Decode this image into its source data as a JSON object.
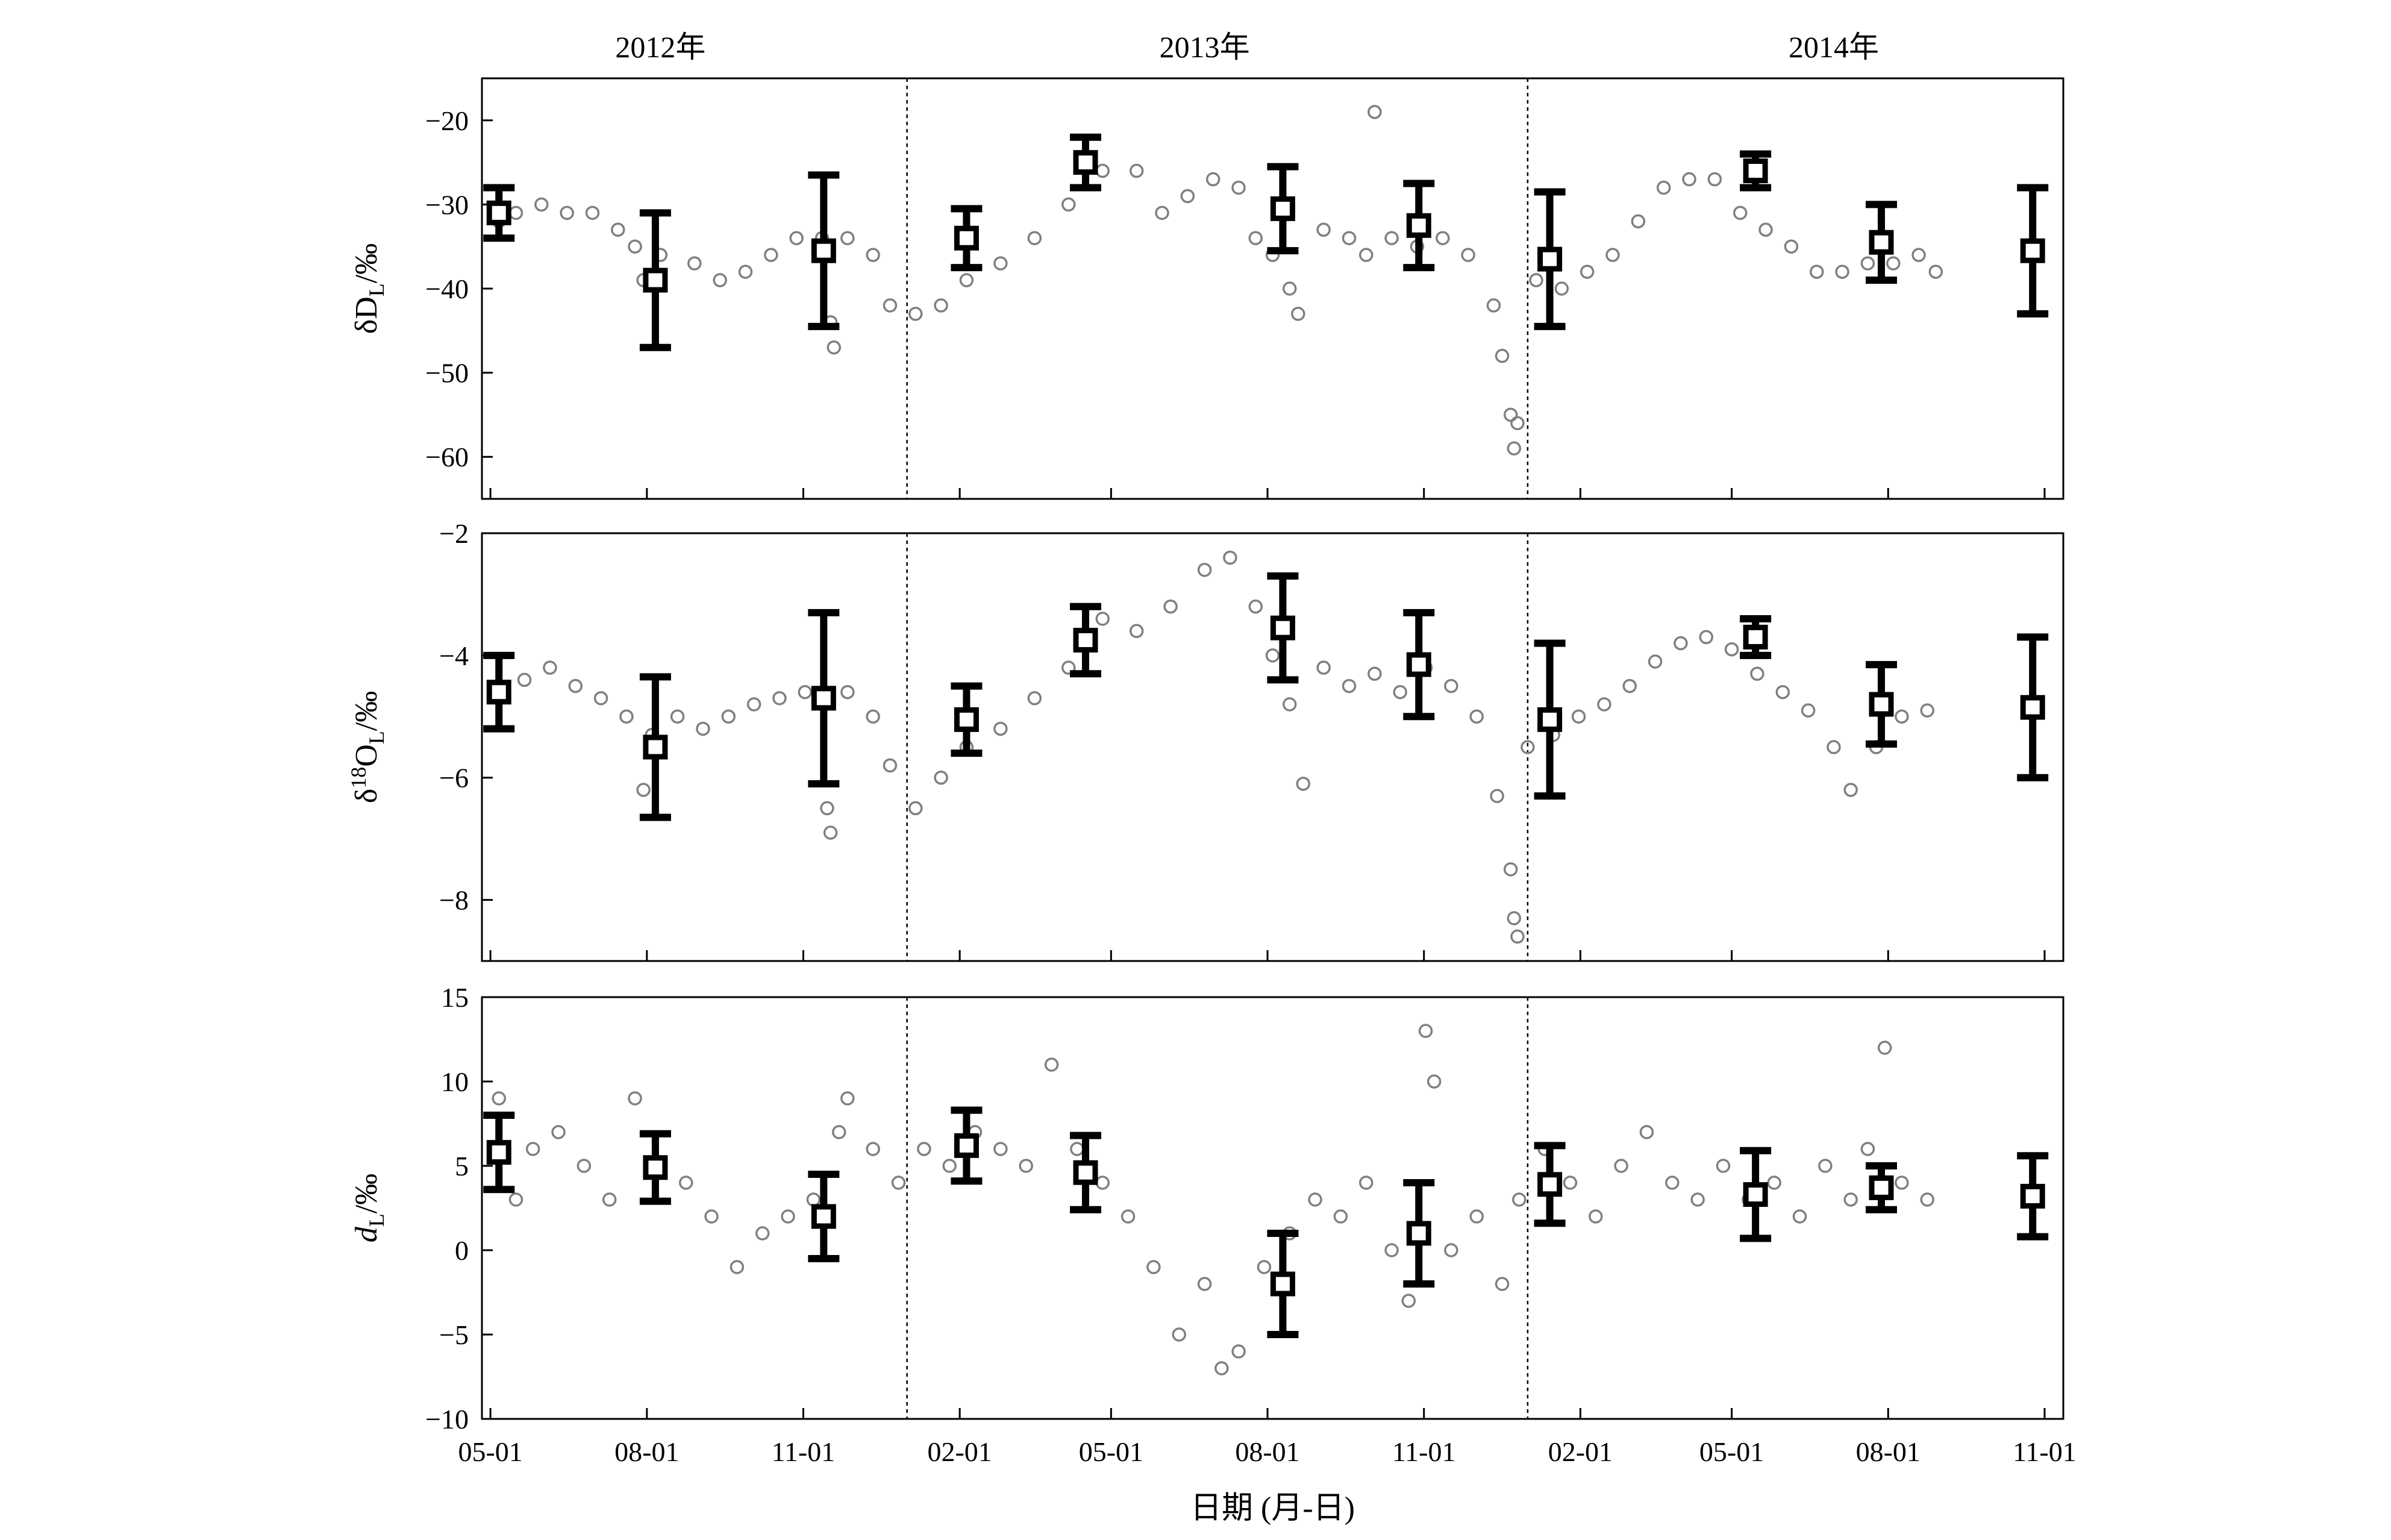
{
  "chart_data": [
    {
      "id": "dD",
      "type": "scatter",
      "ylabel": "δD_L/‰",
      "ylim": [
        -65,
        -15
      ],
      "yticks": [
        -20,
        -30,
        -40,
        -50,
        -60
      ],
      "yticklabels": [
        "−20",
        "−30",
        "−40",
        "−50",
        "−60"
      ],
      "marker_color": "#808080",
      "series": [
        {
          "points": [
            {
              "x": 5,
              "y": -32
            },
            {
              "x": 15,
              "y": -31
            },
            {
              "x": 30,
              "y": -30
            },
            {
              "x": 45,
              "y": -31
            },
            {
              "x": 60,
              "y": -31
            },
            {
              "x": 75,
              "y": -33
            },
            {
              "x": 85,
              "y": -35
            },
            {
              "x": 90,
              "y": -39
            },
            {
              "x": 100,
              "y": -36
            },
            {
              "x": 120,
              "y": -37
            },
            {
              "x": 135,
              "y": -39
            },
            {
              "x": 150,
              "y": -38
            },
            {
              "x": 165,
              "y": -36
            },
            {
              "x": 180,
              "y": -34
            },
            {
              "x": 195,
              "y": -34
            },
            {
              "x": 200,
              "y": -44
            },
            {
              "x": 202,
              "y": -47
            },
            {
              "x": 210,
              "y": -34
            },
            {
              "x": 225,
              "y": -36
            },
            {
              "x": 235,
              "y": -42
            },
            {
              "x": 250,
              "y": -43
            },
            {
              "x": 265,
              "y": -42
            },
            {
              "x": 280,
              "y": -39
            },
            {
              "x": 300,
              "y": -37
            },
            {
              "x": 320,
              "y": -34
            },
            {
              "x": 340,
              "y": -30
            },
            {
              "x": 360,
              "y": -26
            },
            {
              "x": 380,
              "y": -26
            },
            {
              "x": 395,
              "y": -31
            },
            {
              "x": 410,
              "y": -29
            },
            {
              "x": 425,
              "y": -27
            },
            {
              "x": 440,
              "y": -28
            },
            {
              "x": 450,
              "y": -34
            },
            {
              "x": 460,
              "y": -36
            },
            {
              "x": 470,
              "y": -40
            },
            {
              "x": 475,
              "y": -43
            },
            {
              "x": 490,
              "y": -33
            },
            {
              "x": 505,
              "y": -34
            },
            {
              "x": 515,
              "y": -36
            },
            {
              "x": 520,
              "y": -19
            },
            {
              "x": 530,
              "y": -34
            },
            {
              "x": 545,
              "y": -35
            },
            {
              "x": 560,
              "y": -34
            },
            {
              "x": 575,
              "y": -36
            },
            {
              "x": 590,
              "y": -42
            },
            {
              "x": 595,
              "y": -48
            },
            {
              "x": 600,
              "y": -55
            },
            {
              "x": 602,
              "y": -59
            },
            {
              "x": 604,
              "y": -56
            },
            {
              "x": 615,
              "y": -39
            },
            {
              "x": 630,
              "y": -40
            },
            {
              "x": 645,
              "y": -38
            },
            {
              "x": 660,
              "y": -36
            },
            {
              "x": 675,
              "y": -32
            },
            {
              "x": 690,
              "y": -28
            },
            {
              "x": 705,
              "y": -27
            },
            {
              "x": 720,
              "y": -27
            },
            {
              "x": 735,
              "y": -31
            },
            {
              "x": 750,
              "y": -33
            },
            {
              "x": 765,
              "y": -35
            },
            {
              "x": 780,
              "y": -38
            },
            {
              "x": 795,
              "y": -38
            },
            {
              "x": 810,
              "y": -37
            },
            {
              "x": 825,
              "y": -37
            },
            {
              "x": 840,
              "y": -36
            },
            {
              "x": 850,
              "y": -38
            }
          ]
        },
        {
          "name": "mean",
          "points": [
            {
              "x": 5,
              "y": -31,
              "err": 3
            },
            {
              "x": 97,
              "y": -39,
              "err": 8
            },
            {
              "x": 196,
              "y": -35.5,
              "err": 9
            },
            {
              "x": 280,
              "y": -34,
              "err": 3.5
            },
            {
              "x": 350,
              "y": -25,
              "err": 3
            },
            {
              "x": 466,
              "y": -30.5,
              "err": 5
            },
            {
              "x": 546,
              "y": -32.5,
              "err": 5
            },
            {
              "x": 623,
              "y": -36.5,
              "err": 8
            },
            {
              "x": 744,
              "y": -26,
              "err": 2
            },
            {
              "x": 818,
              "y": -34.5,
              "err": 4.5
            },
            {
              "x": 907,
              "y": -35.5,
              "err": 7.5
            }
          ]
        }
      ]
    },
    {
      "id": "d18O",
      "type": "scatter",
      "ylabel": "δ18O_L/‰",
      "ylim": [
        -9,
        -2
      ],
      "yticks": [
        -2,
        -4,
        -6,
        -8
      ],
      "yticklabels": [
        "−2",
        "−4",
        "−6",
        "−8"
      ],
      "marker_color": "#808080",
      "series": [
        {
          "points": [
            {
              "x": 5,
              "y": -4.6
            },
            {
              "x": 20,
              "y": -4.4
            },
            {
              "x": 35,
              "y": -4.2
            },
            {
              "x": 50,
              "y": -4.5
            },
            {
              "x": 65,
              "y": -4.7
            },
            {
              "x": 80,
              "y": -5.0
            },
            {
              "x": 90,
              "y": -6.2
            },
            {
              "x": 95,
              "y": -5.3
            },
            {
              "x": 110,
              "y": -5.0
            },
            {
              "x": 125,
              "y": -5.2
            },
            {
              "x": 140,
              "y": -5.0
            },
            {
              "x": 155,
              "y": -4.8
            },
            {
              "x": 170,
              "y": -4.7
            },
            {
              "x": 185,
              "y": -4.6
            },
            {
              "x": 198,
              "y": -6.5
            },
            {
              "x": 200,
              "y": -6.9
            },
            {
              "x": 210,
              "y": -4.6
            },
            {
              "x": 225,
              "y": -5.0
            },
            {
              "x": 235,
              "y": -5.8
            },
            {
              "x": 250,
              "y": -6.5
            },
            {
              "x": 265,
              "y": -6.0
            },
            {
              "x": 280,
              "y": -5.5
            },
            {
              "x": 300,
              "y": -5.2
            },
            {
              "x": 320,
              "y": -4.7
            },
            {
              "x": 340,
              "y": -4.2
            },
            {
              "x": 360,
              "y": -3.4
            },
            {
              "x": 380,
              "y": -3.6
            },
            {
              "x": 400,
              "y": -3.2
            },
            {
              "x": 420,
              "y": -2.6
            },
            {
              "x": 435,
              "y": -2.4
            },
            {
              "x": 450,
              "y": -3.2
            },
            {
              "x": 460,
              "y": -4.0
            },
            {
              "x": 470,
              "y": -4.8
            },
            {
              "x": 478,
              "y": -6.1
            },
            {
              "x": 490,
              "y": -4.2
            },
            {
              "x": 505,
              "y": -4.5
            },
            {
              "x": 520,
              "y": -4.3
            },
            {
              "x": 535,
              "y": -4.6
            },
            {
              "x": 550,
              "y": -4.2
            },
            {
              "x": 565,
              "y": -4.5
            },
            {
              "x": 580,
              "y": -5.0
            },
            {
              "x": 592,
              "y": -6.3
            },
            {
              "x": 600,
              "y": -7.5
            },
            {
              "x": 602,
              "y": -8.3
            },
            {
              "x": 604,
              "y": -8.6
            },
            {
              "x": 610,
              "y": -5.5
            },
            {
              "x": 625,
              "y": -5.3
            },
            {
              "x": 640,
              "y": -5.0
            },
            {
              "x": 655,
              "y": -4.8
            },
            {
              "x": 670,
              "y": -4.5
            },
            {
              "x": 685,
              "y": -4.1
            },
            {
              "x": 700,
              "y": -3.8
            },
            {
              "x": 715,
              "y": -3.7
            },
            {
              "x": 730,
              "y": -3.9
            },
            {
              "x": 745,
              "y": -4.3
            },
            {
              "x": 760,
              "y": -4.6
            },
            {
              "x": 775,
              "y": -4.9
            },
            {
              "x": 790,
              "y": -5.5
            },
            {
              "x": 800,
              "y": -6.2
            },
            {
              "x": 815,
              "y": -5.5
            },
            {
              "x": 830,
              "y": -5.0
            },
            {
              "x": 845,
              "y": -4.9
            }
          ]
        },
        {
          "name": "mean",
          "points": [
            {
              "x": 5,
              "y": -4.6,
              "err": 0.6
            },
            {
              "x": 97,
              "y": -5.5,
              "err": 1.15
            },
            {
              "x": 196,
              "y": -4.7,
              "err": 1.4
            },
            {
              "x": 280,
              "y": -5.05,
              "err": 0.55
            },
            {
              "x": 350,
              "y": -3.75,
              "err": 0.55
            },
            {
              "x": 466,
              "y": -3.55,
              "err": 0.85
            },
            {
              "x": 546,
              "y": -4.15,
              "err": 0.85
            },
            {
              "x": 623,
              "y": -5.05,
              "err": 1.25
            },
            {
              "x": 744,
              "y": -3.7,
              "err": 0.3
            },
            {
              "x": 818,
              "y": -4.8,
              "err": 0.65
            },
            {
              "x": 907,
              "y": -4.85,
              "err": 1.15
            }
          ]
        }
      ]
    },
    {
      "id": "dL",
      "type": "scatter",
      "ylabel": "d_L/‰",
      "ylim": [
        -10,
        15
      ],
      "yticks": [
        15,
        10,
        5,
        0,
        -5,
        -10
      ],
      "yticklabels": [
        "15",
        "10",
        "5",
        "0",
        "−5",
        "−10"
      ],
      "marker_color": "#808080",
      "series": [
        {
          "points": [
            {
              "x": 5,
              "y": 9
            },
            {
              "x": 15,
              "y": 3
            },
            {
              "x": 25,
              "y": 6
            },
            {
              "x": 40,
              "y": 7
            },
            {
              "x": 55,
              "y": 5
            },
            {
              "x": 70,
              "y": 3
            },
            {
              "x": 85,
              "y": 9
            },
            {
              "x": 100,
              "y": 5
            },
            {
              "x": 115,
              "y": 4
            },
            {
              "x": 130,
              "y": 2
            },
            {
              "x": 145,
              "y": -1
            },
            {
              "x": 160,
              "y": 1
            },
            {
              "x": 175,
              "y": 2
            },
            {
              "x": 190,
              "y": 3
            },
            {
              "x": 205,
              "y": 7
            },
            {
              "x": 210,
              "y": 9
            },
            {
              "x": 225,
              "y": 6
            },
            {
              "x": 240,
              "y": 4
            },
            {
              "x": 255,
              "y": 6
            },
            {
              "x": 270,
              "y": 5
            },
            {
              "x": 285,
              "y": 7
            },
            {
              "x": 300,
              "y": 6
            },
            {
              "x": 315,
              "y": 5
            },
            {
              "x": 330,
              "y": 11
            },
            {
              "x": 345,
              "y": 6
            },
            {
              "x": 360,
              "y": 4
            },
            {
              "x": 375,
              "y": 2
            },
            {
              "x": 390,
              "y": -1
            },
            {
              "x": 405,
              "y": -5
            },
            {
              "x": 420,
              "y": -2
            },
            {
              "x": 430,
              "y": -7
            },
            {
              "x": 440,
              "y": -6
            },
            {
              "x": 455,
              "y": -1
            },
            {
              "x": 470,
              "y": 1
            },
            {
              "x": 485,
              "y": 3
            },
            {
              "x": 500,
              "y": 2
            },
            {
              "x": 515,
              "y": 4
            },
            {
              "x": 530,
              "y": 0
            },
            {
              "x": 540,
              "y": -3
            },
            {
              "x": 550,
              "y": 13
            },
            {
              "x": 555,
              "y": 10
            },
            {
              "x": 565,
              "y": 0
            },
            {
              "x": 580,
              "y": 2
            },
            {
              "x": 595,
              "y": -2
            },
            {
              "x": 605,
              "y": 3
            },
            {
              "x": 620,
              "y": 6
            },
            {
              "x": 635,
              "y": 4
            },
            {
              "x": 650,
              "y": 2
            },
            {
              "x": 665,
              "y": 5
            },
            {
              "x": 680,
              "y": 7
            },
            {
              "x": 695,
              "y": 4
            },
            {
              "x": 710,
              "y": 3
            },
            {
              "x": 725,
              "y": 5
            },
            {
              "x": 740,
              "y": 3
            },
            {
              "x": 755,
              "y": 4
            },
            {
              "x": 770,
              "y": 2
            },
            {
              "x": 785,
              "y": 5
            },
            {
              "x": 800,
              "y": 3
            },
            {
              "x": 810,
              "y": 6
            },
            {
              "x": 820,
              "y": 12
            },
            {
              "x": 830,
              "y": 4
            },
            {
              "x": 845,
              "y": 3
            }
          ]
        },
        {
          "name": "mean",
          "points": [
            {
              "x": 5,
              "y": 5.8,
              "err": 2.2
            },
            {
              "x": 97,
              "y": 4.9,
              "err": 2.0
            },
            {
              "x": 196,
              "y": 2.0,
              "err": 2.5
            },
            {
              "x": 280,
              "y": 6.2,
              "err": 2.1
            },
            {
              "x": 350,
              "y": 4.6,
              "err": 2.2
            },
            {
              "x": 466,
              "y": -2.0,
              "err": 3.0
            },
            {
              "x": 546,
              "y": 1.0,
              "err": 3.0
            },
            {
              "x": 623,
              "y": 3.9,
              "err": 2.3
            },
            {
              "x": 744,
              "y": 3.3,
              "err": 2.6
            },
            {
              "x": 818,
              "y": 3.7,
              "err": 1.3
            },
            {
              "x": 907,
              "y": 3.2,
              "err": 2.4
            }
          ]
        }
      ]
    }
  ],
  "shared_x": {
    "xlabel": "日期 (月-日)",
    "xlim": [
      -5,
      925
    ],
    "ticks": [
      0,
      92,
      184,
      276,
      365,
      457,
      549,
      641,
      730,
      822,
      914
    ],
    "tick_labels": [
      "05-01",
      "08-01",
      "11-01",
      "02-01",
      "05-01",
      "08-01",
      "11-01",
      "02-01",
      "05-01",
      "08-01",
      "11-01"
    ],
    "year_dividers": [
      245,
      610
    ],
    "year_labels": [
      {
        "text": "2012年",
        "x": 100
      },
      {
        "text": "2013年",
        "x": 420
      },
      {
        "text": "2014年",
        "x": 790
      }
    ]
  }
}
